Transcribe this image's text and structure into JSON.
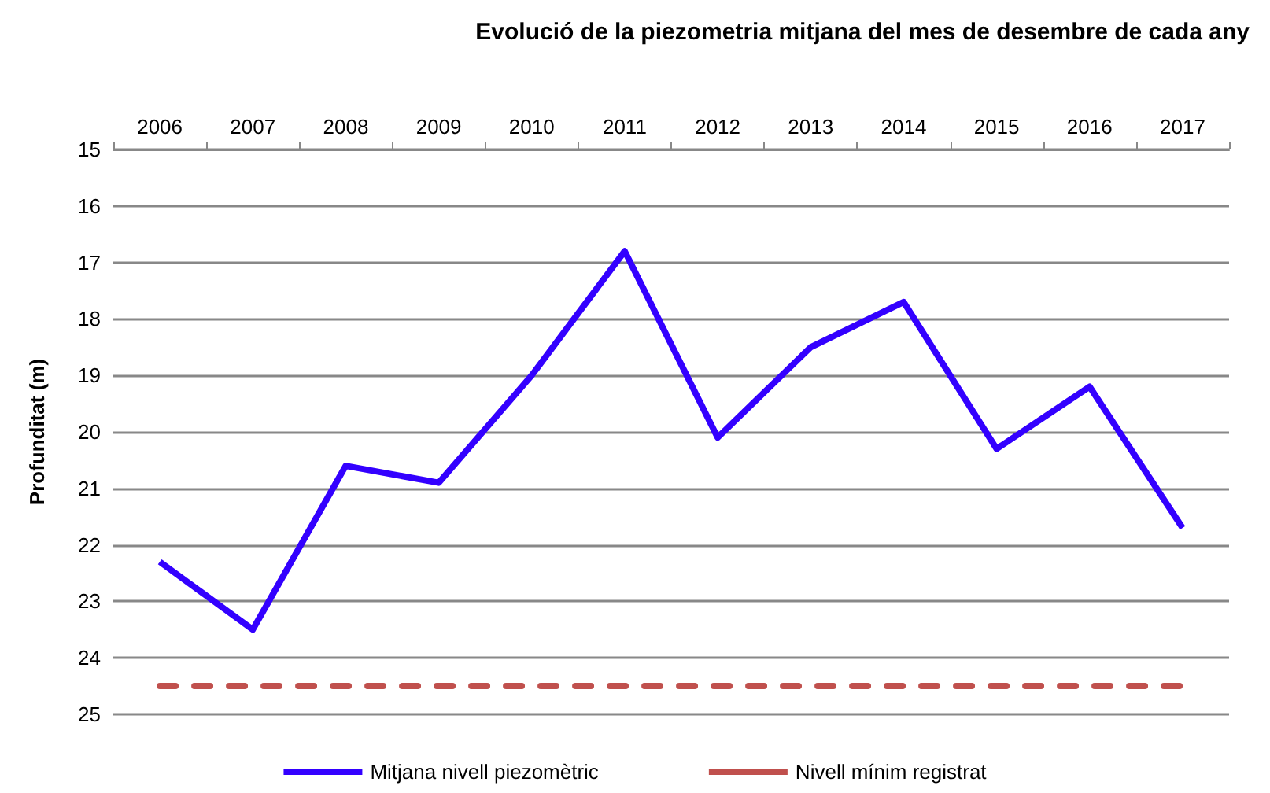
{
  "chart_data": {
    "type": "line",
    "title": "Evolució de la piezometria mitjana del mes de desembre de cada any",
    "ylabel": "Profunditat (m)",
    "categories": [
      "2006",
      "2007",
      "2008",
      "2009",
      "2010",
      "2011",
      "2012",
      "2013",
      "2014",
      "2015",
      "2016",
      "2017"
    ],
    "series": [
      {
        "name": "Mitjana nivell piezomètric",
        "color": "#3300ff",
        "values": [
          22.3,
          23.5,
          20.6,
          20.9,
          19.0,
          16.8,
          20.1,
          18.5,
          17.7,
          20.3,
          19.2,
          21.7
        ]
      },
      {
        "name": "Nivell mínim registrat",
        "color": "#c0504d",
        "line_style": "dashed",
        "values": [
          24.5,
          24.5,
          24.5,
          24.5,
          24.5,
          24.5,
          24.5,
          24.5,
          24.5,
          24.5,
          24.5,
          24.5
        ]
      }
    ],
    "ylim": [
      25,
      15
    ],
    "yticks": [
      15,
      16,
      17,
      18,
      19,
      20,
      21,
      22,
      23,
      24,
      25
    ],
    "grid": "y",
    "legend": "bottom",
    "marker": "none",
    "line_style": "solid"
  }
}
